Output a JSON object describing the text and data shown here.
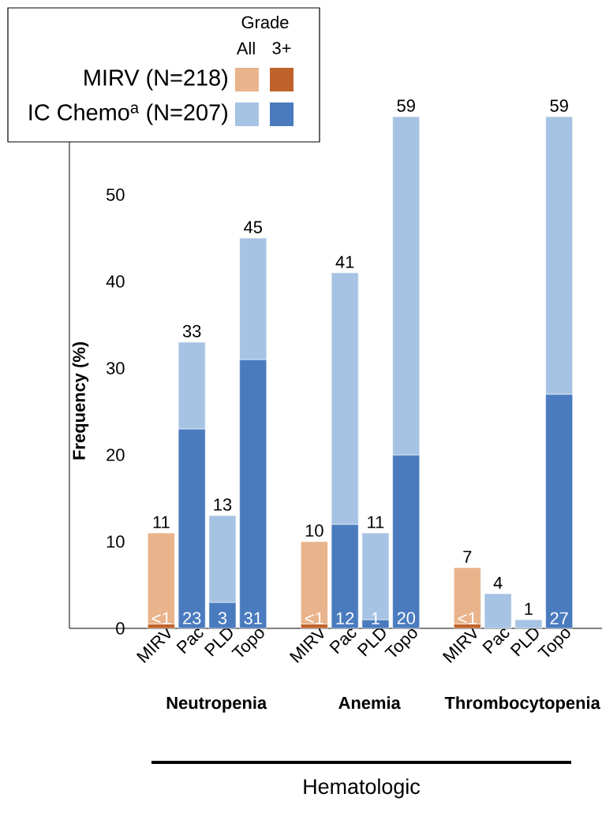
{
  "chart_data": {
    "type": "bar",
    "stacked": true,
    "ylabel": "Frequency (%)",
    "legend_title": "Grade",
    "legend": "top left",
    "categories": [
      "MIRV",
      "Pac",
      "PLD",
      "Topo",
      null,
      "MIRV",
      "Pac",
      "PLD",
      "Topo",
      null,
      "MIRV",
      "Pac",
      "PLD",
      "Topo"
    ],
    "ylim": [
      0,
      64
    ],
    "yticks": [
      0,
      10,
      20,
      30,
      40,
      50
    ],
    "grid": false,
    "series": [
      {
        "color": "#c0632b",
        "values": [
          0.5,
          null,
          null,
          null,
          null,
          0.5,
          null,
          null,
          null,
          null,
          0.5,
          null,
          null,
          null
        ],
        "value_labels": [
          "<1",
          null,
          null,
          null,
          null,
          "<1",
          null,
          null,
          null,
          null,
          "<1",
          null,
          null,
          null
        ]
      },
      {
        "color": "#4a7bbf",
        "values": [
          null,
          23,
          3,
          31,
          null,
          null,
          12,
          1,
          20,
          null,
          null,
          null,
          null,
          27
        ],
        "value_labels": [
          null,
          "23",
          "3",
          "31",
          null,
          null,
          "12",
          "1",
          "20",
          null,
          null,
          null,
          null,
          "27"
        ]
      },
      {
        "name": "MIRV (N=218)",
        "color": "#e9b38b",
        "values": [
          10.5,
          null,
          null,
          null,
          null,
          9.5,
          null,
          null,
          null,
          null,
          6.5,
          null,
          null,
          null
        ]
      },
      {
        "name": "IC Chemo$^{a}$ (N=207)",
        "color": "#a6c3e3",
        "values": [
          null,
          10,
          10,
          14,
          null,
          null,
          29,
          10,
          39,
          null,
          null,
          4,
          1,
          32
        ]
      }
    ],
    "totals": [
      "11",
      "33",
      "13",
      "45",
      null,
      "10",
      "41",
      "11",
      "59",
      null,
      "7",
      "4",
      "1",
      "59"
    ],
    "annotations": [
      "Neutropenia",
      "Anemia",
      "Thrombocytopenia",
      "Hematologic",
      "All",
      "3+"
    ]
  }
}
